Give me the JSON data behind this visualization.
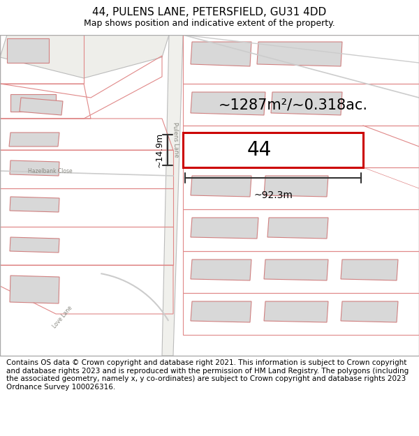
{
  "title": "44, PULENS LANE, PETERSFIELD, GU31 4DD",
  "subtitle": "Map shows position and indicative extent of the property.",
  "footnote": "Contains OS data © Crown copyright and database right 2021. This information is subject to Crown copyright and database rights 2023 and is reproduced with the permission of HM Land Registry. The polygons (including the associated geometry, namely x, y co-ordinates) are subject to Crown copyright and database rights 2023 Ordnance Survey 100026316.",
  "map_bg": "#f9f9f7",
  "line_color": "#e08888",
  "highlight_color": "#cc0000",
  "building_fill": "#d8d8d8",
  "building_edge": "#d08080",
  "road_fill": "#ffffff",
  "road_edge": "#cccccc",
  "area_label": "~1287m²/~0.318ac.",
  "width_label": "~92.3m",
  "height_label": "~14.9m",
  "number_label": "44",
  "street_label": "Pulens Lane",
  "street2_label": "Hazelbank Close",
  "street3_label": "Love Lane",
  "title_fontsize": 11,
  "subtitle_fontsize": 9,
  "footnote_fontsize": 7.5
}
